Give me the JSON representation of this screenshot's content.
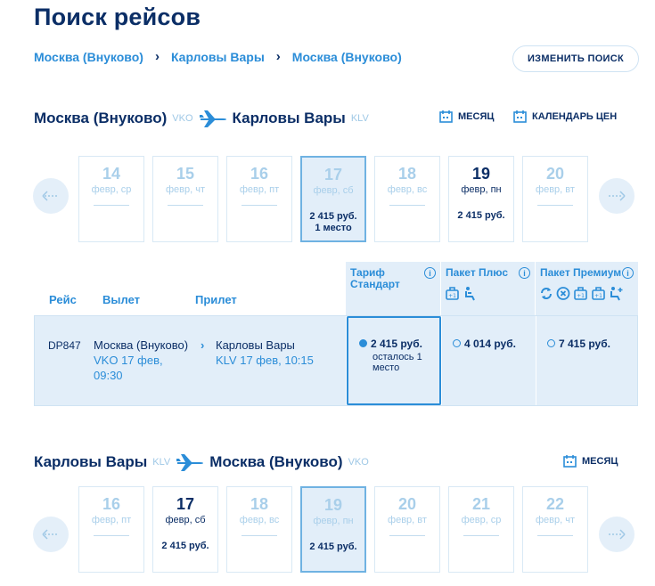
{
  "page_title": "Поиск рейсов",
  "breadcrumb": [
    "Москва (Внуково)",
    "Карловы Вары",
    "Москва (Внуково)"
  ],
  "change_search_label": "ИЗМЕНИТЬ ПОИСК",
  "outbound": {
    "from": "Москва (Внуково)",
    "from_code": "VKO",
    "to": "Карловы Вары",
    "to_code": "KLV",
    "month_label": "МЕСЯЦ",
    "price_calendar_label": "КАЛЕНДАРЬ ЦЕН",
    "days": [
      {
        "num": "14",
        "date": "февр, ср",
        "price": "",
        "state": "empty"
      },
      {
        "num": "15",
        "date": "февр, чт",
        "price": "",
        "state": "empty"
      },
      {
        "num": "16",
        "date": "февр, пт",
        "price": "",
        "state": "empty"
      },
      {
        "num": "17",
        "date": "февр, сб",
        "price": "2 415 руб.\n1 место",
        "state": "selected"
      },
      {
        "num": "18",
        "date": "февр, вс",
        "price": "",
        "state": "empty"
      },
      {
        "num": "19",
        "date": "февр, пн",
        "price": "2 415 руб.",
        "state": "has-price"
      },
      {
        "num": "20",
        "date": "февр, вт",
        "price": "",
        "state": "empty"
      }
    ]
  },
  "table": {
    "headers": {
      "flight": "Рейс",
      "departure": "Вылет",
      "arrival": "Прилет"
    },
    "tariffs": [
      {
        "name": "Тариф Стандарт",
        "info": "i"
      },
      {
        "name": "Пакет Плюс",
        "info": "i"
      },
      {
        "name": "Пакет Премиум",
        "info": "i"
      }
    ],
    "row": {
      "flight": "DP847",
      "dep_city": "Москва (Внуково)",
      "dep_detail": "VKO 17 фев, 09:30",
      "arr_city": "Карловы Вары",
      "arr_detail": "KLV 17 фев, 10:15",
      "fares": [
        {
          "price": "2 415 руб.",
          "note": "осталось 1 место",
          "selected": true
        },
        {
          "price": "4 014 руб.",
          "note": "",
          "selected": false
        },
        {
          "price": "7 415 руб.",
          "note": "",
          "selected": false
        }
      ]
    }
  },
  "return": {
    "from": "Карловы Вары",
    "from_code": "KLV",
    "to": "Москва (Внуково)",
    "to_code": "VKO",
    "month_label": "МЕСЯЦ",
    "days": [
      {
        "num": "16",
        "date": "февр, пт",
        "price": "",
        "state": "empty"
      },
      {
        "num": "17",
        "date": "февр, сб",
        "price": "2 415 руб.",
        "state": "has-price"
      },
      {
        "num": "18",
        "date": "февр, вс",
        "price": "",
        "state": "empty"
      },
      {
        "num": "19",
        "date": "февр, пн",
        "price": "2 415 руб.",
        "state": "selected"
      },
      {
        "num": "20",
        "date": "февр, вт",
        "price": "",
        "state": "empty"
      },
      {
        "num": "21",
        "date": "февр, ср",
        "price": "",
        "state": "empty"
      },
      {
        "num": "22",
        "date": "февр, чт",
        "price": "",
        "state": "empty"
      }
    ]
  },
  "colors": {
    "primary": "#0b2e66",
    "accent": "#2b8dd8",
    "light_bg": "#e2eef9"
  }
}
